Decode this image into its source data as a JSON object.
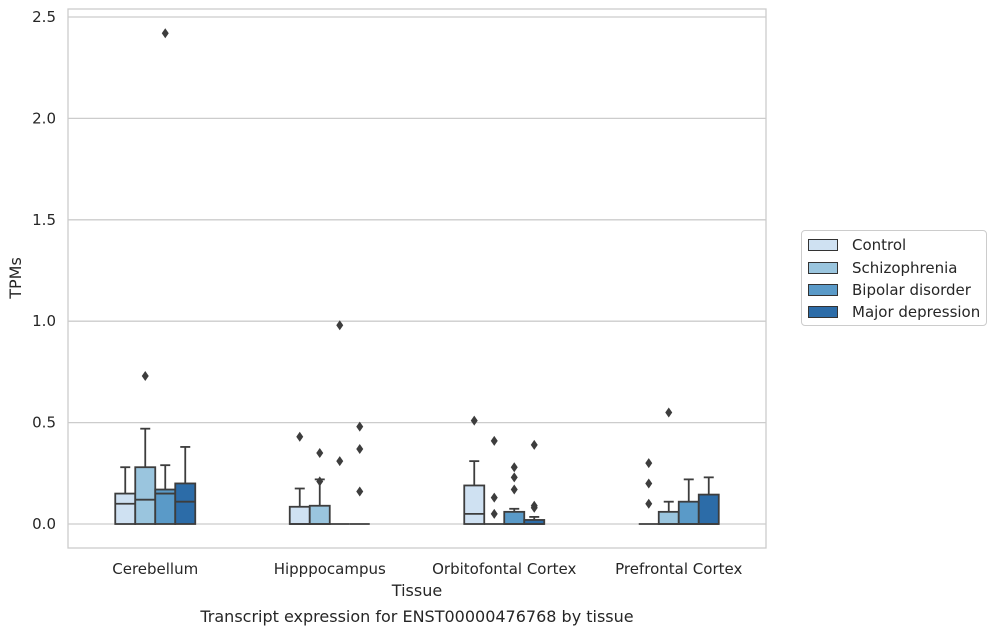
{
  "chart_data": {
    "type": "box",
    "title": "Transcript expression for ENST00000476768 by tissue",
    "xlabel": "Tissue",
    "ylabel": "TPMs",
    "ylim": [
      -0.12,
      2.55
    ],
    "yticks": [
      "0.0",
      "0.5",
      "1.0",
      "1.5",
      "2.0",
      "2.5"
    ],
    "ytick_values": [
      0,
      0.5,
      1.0,
      1.5,
      2.0,
      2.5
    ],
    "grid": true,
    "legend_position": "right",
    "categories": [
      "Cerebellum",
      "Hipppocampus",
      "Orbitofontal Cortex",
      "Prefrontal Cortex"
    ],
    "series": [
      {
        "name": "Control",
        "color": "#cfe1f2",
        "boxes": [
          {
            "q1": 0,
            "median": 0.1,
            "q3": 0.15,
            "whislo": 0,
            "whishi": 0.28,
            "fliers": []
          },
          {
            "q1": 0,
            "median": 0,
            "q3": 0.085,
            "whislo": 0,
            "whishi": 0.175,
            "fliers": [
              0.43
            ]
          },
          {
            "q1": 0,
            "median": 0.05,
            "q3": 0.19,
            "whislo": 0,
            "whishi": 0.31,
            "fliers": [
              0.51
            ]
          },
          {
            "q1": 0,
            "median": 0,
            "q3": 0,
            "whislo": 0,
            "whishi": 0,
            "fliers": [
              0.3,
              0.2,
              0.1
            ]
          }
        ]
      },
      {
        "name": "Schizophrenia",
        "color": "#9ac5de",
        "boxes": [
          {
            "q1": 0,
            "median": 0.12,
            "q3": 0.28,
            "whislo": 0,
            "whishi": 0.47,
            "fliers": [
              0.73
            ]
          },
          {
            "q1": 0,
            "median": 0,
            "q3": 0.09,
            "whislo": 0,
            "whishi": 0.22,
            "fliers": [
              0.35,
              0.21
            ]
          },
          {
            "q1": 0,
            "median": 0,
            "q3": 0,
            "whislo": 0,
            "whishi": 0,
            "fliers": [
              0.41,
              0.13,
              0.05
            ]
          },
          {
            "q1": 0,
            "median": 0,
            "q3": 0.06,
            "whislo": 0,
            "whishi": 0.11,
            "fliers": [
              0.55
            ]
          }
        ]
      },
      {
        "name": "Bipolar disorder",
        "color": "#5a9ac8",
        "boxes": [
          {
            "q1": 0,
            "median": 0.15,
            "q3": 0.17,
            "whislo": 0,
            "whishi": 0.29,
            "fliers": [
              2.42
            ]
          },
          {
            "q1": 0,
            "median": 0,
            "q3": 0,
            "whislo": 0,
            "whishi": 0,
            "fliers": [
              0.98,
              0.31
            ]
          },
          {
            "q1": 0,
            "median": 0,
            "q3": 0.06,
            "whislo": 0,
            "whishi": 0.075,
            "fliers": [
              0.28,
              0.23,
              0.17
            ]
          },
          {
            "q1": 0,
            "median": 0,
            "q3": 0.11,
            "whislo": 0,
            "whishi": 0.22,
            "fliers": []
          }
        ]
      },
      {
        "name": "Major depression",
        "color": "#2c6ca8",
        "boxes": [
          {
            "q1": 0,
            "median": 0.11,
            "q3": 0.2,
            "whislo": 0,
            "whishi": 0.38,
            "fliers": []
          },
          {
            "q1": 0,
            "median": 0,
            "q3": 0,
            "whislo": 0,
            "whishi": 0,
            "fliers": [
              0.48,
              0.37,
              0.16
            ]
          },
          {
            "q1": 0,
            "median": 0,
            "q3": 0.02,
            "whislo": 0,
            "whishi": 0.035,
            "fliers": [
              0.39,
              0.09,
              0.08
            ]
          },
          {
            "q1": 0,
            "median": 0,
            "q3": 0.145,
            "whislo": 0,
            "whishi": 0.23,
            "fliers": []
          }
        ]
      }
    ]
  },
  "colors": {
    "grid": "#cccccc",
    "box_edge": "#3d3d3d",
    "text": "#262626"
  }
}
